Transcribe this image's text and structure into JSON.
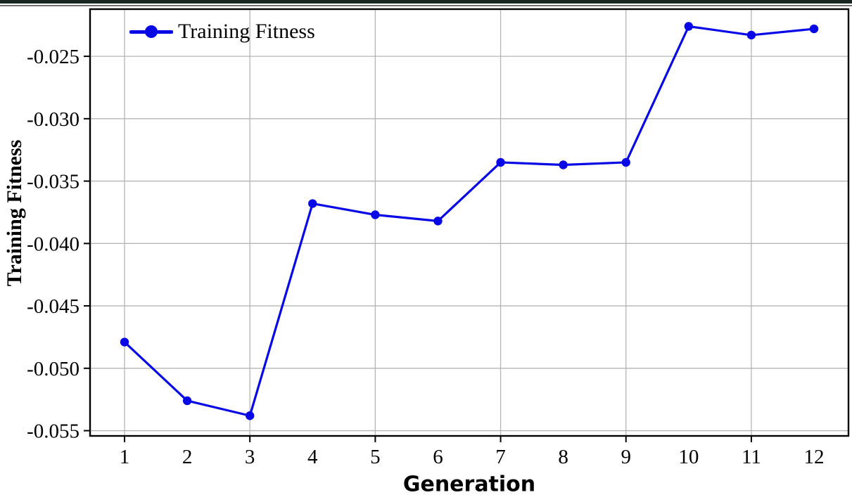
{
  "window": {
    "top_bar_color": "#1a2420",
    "divider_color": "#6e6e6e",
    "background": "#ffffff"
  },
  "chart_data": {
    "type": "line",
    "title": "",
    "xlabel": "Generation",
    "ylabel": "Training Fitness",
    "legend": {
      "label": "Training Fitness",
      "position": "upper-left"
    },
    "x": [
      1,
      2,
      3,
      4,
      5,
      6,
      7,
      8,
      9,
      10,
      11,
      12
    ],
    "categories": [
      "1",
      "2",
      "3",
      "4",
      "5",
      "6",
      "7",
      "8",
      "9",
      "10",
      "11",
      "12"
    ],
    "series": [
      {
        "name": "Training Fitness",
        "color": "#0808e6",
        "marker": "circle",
        "values": [
          -0.0479,
          -0.0526,
          -0.0538,
          -0.0368,
          -0.0377,
          -0.0382,
          -0.0335,
          -0.0337,
          -0.0335,
          -0.0226,
          -0.0233,
          -0.0228
        ]
      }
    ],
    "yticks": [
      {
        "value": -0.025,
        "label": "-0.025"
      },
      {
        "value": -0.03,
        "label": "-0.030"
      },
      {
        "value": -0.035,
        "label": "-0.035"
      },
      {
        "value": -0.04,
        "label": "-0.040"
      },
      {
        "value": -0.045,
        "label": "-0.045"
      },
      {
        "value": -0.05,
        "label": "-0.050"
      },
      {
        "value": -0.055,
        "label": "-0.055"
      }
    ],
    "xlim": [
      0.45,
      12.55
    ],
    "ylim": [
      -0.05542,
      -0.02122
    ],
    "grid": {
      "enabled": true,
      "color": "#b5b5b5",
      "x_gridline_positions": [
        1,
        3,
        5,
        7,
        9,
        11
      ]
    },
    "axis_color": "#000000",
    "tick_label_color": "#000000"
  }
}
